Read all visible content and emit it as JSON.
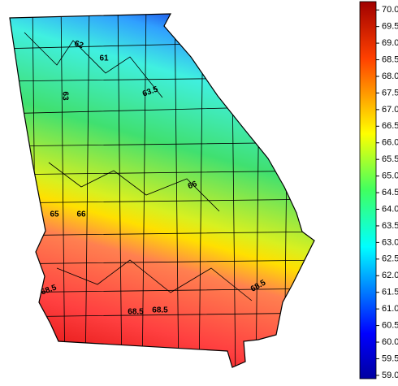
{
  "colorbar": {
    "lim": [
      58.9,
      70.25
    ],
    "ticks": [
      {
        "value": 59,
        "label": "59.0"
      },
      {
        "value": 59.5,
        "label": "59.5"
      },
      {
        "value": 60,
        "label": "60.0"
      },
      {
        "value": 60.5,
        "label": "60.5"
      },
      {
        "value": 61,
        "label": "61.0"
      },
      {
        "value": 61.5,
        "label": "61.5"
      },
      {
        "value": 62,
        "label": "62.0"
      },
      {
        "value": 62.5,
        "label": "62.5"
      },
      {
        "value": 63,
        "label": "63.0"
      },
      {
        "value": 63.5,
        "label": "63.5"
      },
      {
        "value": 64,
        "label": "64.0"
      },
      {
        "value": 64.5,
        "label": "64.5"
      },
      {
        "value": 65,
        "label": "65.0"
      },
      {
        "value": 65.5,
        "label": "65.5"
      },
      {
        "value": 66,
        "label": "66.0"
      },
      {
        "value": 66.5,
        "label": "66.5"
      },
      {
        "value": 67,
        "label": "67.0"
      },
      {
        "value": 67.5,
        "label": "67.5"
      },
      {
        "value": 68,
        "label": "68.0"
      },
      {
        "value": 68.5,
        "label": "68.5"
      },
      {
        "value": 69,
        "label": "69.0"
      },
      {
        "value": 69.5,
        "label": "69.5"
      },
      {
        "value": 70,
        "label": "70.0"
      }
    ]
  },
  "contour_labels": [
    "62",
    "61",
    "63.5",
    "63",
    "66",
    "65",
    "66",
    "68.5",
    "68.5",
    "68.5",
    "68.5"
  ]
}
